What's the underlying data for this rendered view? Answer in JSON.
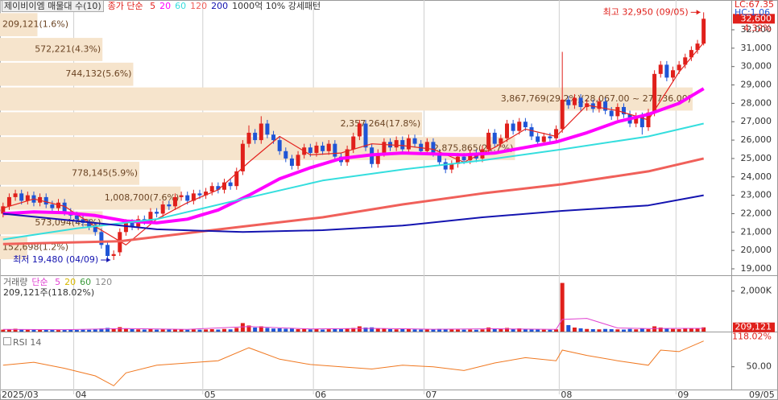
{
  "header": {
    "title": "제이비이엠 매물대 수(10)",
    "ma_prefix": "종가 단순",
    "pattern": "1000억 10% 강세패턴",
    "lc": "LC:67.35",
    "hc": "HC:1.06"
  },
  "chart_data": [
    {
      "type": "candlestick",
      "open": [
        22000,
        22400,
        22900,
        23100,
        22700,
        23000,
        22600,
        22900,
        22500,
        22300,
        22600,
        22100,
        21900,
        21700,
        21500,
        21300,
        21000,
        20300,
        19700,
        19900,
        21000,
        21500,
        21300,
        21700,
        21600,
        22100,
        22000,
        22500,
        22400,
        22900,
        23000,
        22700,
        23100,
        23000,
        23200,
        23500,
        23300,
        23700,
        23500,
        24300,
        25800,
        26400,
        26000,
        26900,
        26300,
        26000,
        25400,
        25000,
        24600,
        25200,
        25600,
        25300,
        25700,
        25400,
        25800,
        25100,
        24800,
        25500,
        26200,
        26900,
        25600,
        24700,
        25300,
        25900,
        25600,
        26000,
        25500,
        26100,
        25800,
        25400,
        25900,
        25300,
        24800,
        24400,
        24700,
        25100,
        24900,
        25300,
        25000,
        25500,
        26400,
        25800,
        26100,
        26900,
        26500,
        27000,
        26700,
        26200,
        25900,
        26200,
        26100,
        26600,
        28200,
        27900,
        28300,
        27800,
        28000,
        27700,
        28100,
        27600,
        27300,
        27800,
        27400,
        26900,
        27300,
        26700,
        27500,
        29600,
        30100,
        29400,
        29800,
        30100,
        30500,
        30900,
        31250
      ],
      "high": [
        22600,
        23100,
        23300,
        23300,
        23200,
        23200,
        23100,
        23100,
        22700,
        22800,
        22800,
        22300,
        22100,
        21900,
        21700,
        21500,
        21200,
        20500,
        20000,
        21200,
        21700,
        21700,
        21900,
        21900,
        22300,
        22300,
        22700,
        22700,
        23100,
        23200,
        23200,
        23300,
        23300,
        23400,
        23700,
        23700,
        23900,
        23900,
        24500,
        26000,
        26800,
        26600,
        27300,
        27100,
        26500,
        26200,
        25600,
        25200,
        25400,
        25800,
        25800,
        25900,
        25900,
        26000,
        26000,
        25300,
        25700,
        26400,
        27100,
        27100,
        25800,
        25500,
        26100,
        26100,
        26200,
        26200,
        26300,
        26300,
        26000,
        26100,
        26100,
        25500,
        25000,
        24900,
        25300,
        25300,
        25500,
        25500,
        25700,
        26600,
        26600,
        26300,
        27100,
        27100,
        27200,
        27200,
        26900,
        26400,
        26400,
        26400,
        26800,
        30800,
        28400,
        28500,
        28500,
        28200,
        28200,
        28300,
        28300,
        27800,
        28000,
        28000,
        27600,
        27500,
        27500,
        27700,
        29800,
        30300,
        30300,
        30000,
        30300,
        30700,
        31100,
        31450,
        32950
      ],
      "low": [
        21800,
        22200,
        22700,
        22500,
        22500,
        22400,
        22400,
        22300,
        22100,
        22100,
        21900,
        21700,
        21500,
        21300,
        21100,
        20800,
        20100,
        19500,
        19480,
        19700,
        20800,
        21100,
        21100,
        21400,
        21400,
        21800,
        21800,
        22200,
        22200,
        22700,
        22500,
        22500,
        22800,
        22800,
        23000,
        23100,
        23100,
        23300,
        23300,
        24100,
        25600,
        25800,
        25800,
        26100,
        25800,
        25200,
        24800,
        24400,
        24400,
        25000,
        25100,
        25100,
        25200,
        25200,
        24900,
        24600,
        24600,
        25300,
        26000,
        25400,
        24500,
        24500,
        25100,
        25400,
        25400,
        25300,
        25300,
        25600,
        25200,
        25200,
        25100,
        24600,
        24200,
        24200,
        24500,
        24700,
        24700,
        24800,
        24800,
        25300,
        25600,
        25600,
        25900,
        26300,
        26300,
        26500,
        26000,
        25700,
        25700,
        25900,
        25900,
        26400,
        27700,
        27700,
        27600,
        27600,
        27500,
        27500,
        27400,
        27100,
        27100,
        27200,
        26700,
        26700,
        26300,
        26500,
        27300,
        29400,
        29200,
        29200,
        29600,
        29900,
        30300,
        30700,
        31150
      ],
      "close": [
        22400,
        22900,
        23100,
        22700,
        23000,
        22600,
        22900,
        22500,
        22300,
        22600,
        22100,
        21900,
        21700,
        21500,
        21300,
        21000,
        20300,
        19700,
        19800,
        21000,
        21500,
        21300,
        21700,
        21600,
        22100,
        22000,
        22500,
        22400,
        22900,
        23000,
        22700,
        23100,
        23000,
        23200,
        23500,
        23300,
        23700,
        23500,
        24300,
        25800,
        26400,
        26000,
        26900,
        26300,
        26000,
        25400,
        25000,
        24600,
        25200,
        25600,
        25300,
        25700,
        25400,
        25800,
        25100,
        24800,
        25500,
        26200,
        26900,
        25600,
        24700,
        25300,
        25900,
        25600,
        26000,
        25500,
        26100,
        25800,
        25400,
        25900,
        25300,
        24800,
        24400,
        24700,
        25100,
        24900,
        25300,
        25000,
        25500,
        26400,
        25800,
        26100,
        26900,
        26500,
        27000,
        26700,
        26200,
        25900,
        26200,
        26100,
        26600,
        28200,
        27900,
        28300,
        27800,
        28000,
        27700,
        28100,
        27600,
        27300,
        27800,
        27400,
        26900,
        27300,
        26700,
        27500,
        29600,
        30100,
        29400,
        29800,
        30100,
        30500,
        30900,
        31250,
        32600
      ],
      "up_color": "#e0201b",
      "down_color": "#1f55d6",
      "xlim": [
        0,
        119
      ],
      "xticks": [
        {
          "value": 0,
          "label": "2025/03"
        },
        {
          "value": 12,
          "label": "04"
        },
        {
          "value": 33,
          "label": "05"
        },
        {
          "value": 51,
          "label": "06"
        },
        {
          "value": 69,
          "label": "07"
        },
        {
          "value": 91,
          "label": "08"
        },
        {
          "value": 110,
          "label": "09"
        }
      ],
      "last_date_label": "09/05",
      "ylim": [
        18650,
        33620
      ],
      "yticks": [
        {
          "value": 19000,
          "label": "19,000"
        },
        {
          "value": 20000,
          "label": "20,000"
        },
        {
          "value": 21000,
          "label": "21,000"
        },
        {
          "value": 22000,
          "label": "22,000"
        },
        {
          "value": 23000,
          "label": "23,000"
        },
        {
          "value": 24000,
          "label": "24,000"
        },
        {
          "value": 25000,
          "label": "25,000"
        },
        {
          "value": 26000,
          "label": "26,000"
        },
        {
          "value": 27000,
          "label": "27,000"
        },
        {
          "value": 28000,
          "label": "28,000"
        },
        {
          "value": 29000,
          "label": "29,000"
        },
        {
          "value": 30000,
          "label": "30,000"
        },
        {
          "value": 31000,
          "label": "31,000"
        },
        {
          "value": 32000,
          "label": "32,000"
        }
      ],
      "series": [
        {
          "name": "5",
          "color": "#e4231f",
          "width": 1.2,
          "x": [
            0,
            5,
            10,
            15,
            20,
            25,
            30,
            35,
            40,
            45,
            50,
            55,
            60,
            65,
            70,
            75,
            80,
            85,
            90,
            95,
            100,
            105,
            110,
            114
          ],
          "values": [
            22300,
            22800,
            22400,
            21300,
            20300,
            21700,
            22600,
            23300,
            24800,
            26200,
            25200,
            25300,
            25800,
            25700,
            25500,
            24800,
            25600,
            26600,
            26200,
            27900,
            27600,
            27100,
            29700,
            31300
          ]
        },
        {
          "name": "20",
          "color": "#ff00ff",
          "width": 4,
          "x": [
            0,
            5,
            10,
            15,
            20,
            25,
            30,
            35,
            40,
            45,
            50,
            55,
            60,
            65,
            70,
            75,
            80,
            85,
            90,
            95,
            100,
            105,
            110,
            114
          ],
          "values": [
            22000,
            22100,
            22050,
            21900,
            21600,
            21500,
            21700,
            22200,
            23000,
            23900,
            24500,
            25000,
            25200,
            25300,
            25250,
            25200,
            25300,
            25600,
            25900,
            26400,
            27000,
            27400,
            28000,
            28800
          ]
        },
        {
          "name": "60",
          "color": "#35dede",
          "width": 2,
          "x": [
            0,
            12,
            25,
            39,
            52,
            65,
            78,
            91,
            105,
            114
          ],
          "values": [
            20600,
            21200,
            21700,
            22800,
            23800,
            24400,
            24900,
            25500,
            26200,
            26900
          ]
        },
        {
          "name": "120",
          "color": "#f0605a",
          "width": 3,
          "x": [
            0,
            19,
            39,
            52,
            65,
            78,
            91,
            105,
            114
          ],
          "values": [
            20350,
            20500,
            21300,
            21800,
            22500,
            23100,
            23600,
            24300,
            25000
          ]
        },
        {
          "name": "200",
          "color": "#1414b0",
          "width": 2,
          "x": [
            0,
            12,
            25,
            39,
            52,
            65,
            78,
            91,
            105,
            114
          ],
          "values": [
            22000,
            21600,
            21150,
            21000,
            21100,
            21350,
            21800,
            22150,
            22450,
            23000
          ]
        }
      ],
      "profile": {
        "color": "#f6e4cc",
        "label_color": "#6b4423",
        "bin_edges": [
          19480,
          20827,
          22174,
          23521,
          24868,
          26215,
          27562,
          28909,
          30256,
          31603,
          32950
        ],
        "values": [
          152698,
          573094,
          1008700,
          778145,
          2875865,
          2357264,
          3867769,
          744132,
          572221,
          209121
        ],
        "value_labels": [
          "152,698(1.2%)",
          "573,094(4.3%)",
          "1,008,700(7.6%)",
          "778,145(5.9%)",
          "2,875,865(21.7%)",
          "2,357,264(17.8%)",
          "3,867,769(29.2%)(28,067.00 ~ 27,736.00)",
          "744,132(5.6%)",
          "572,221(4.3%)",
          "209,121(1.6%)"
        ]
      },
      "annotations": [
        {
          "text": "최고 32,950 (09/05)",
          "x": 114,
          "value": 32950
        },
        {
          "text": "최저 19,480 (04/09)",
          "x": 18,
          "value": 19480
        }
      ],
      "last_label": "32,600",
      "last_value": 32600,
      "change_label": "4.32%"
    },
    {
      "type": "bar",
      "values": [
        95000,
        120000,
        140000,
        110000,
        90000,
        100000,
        85000,
        90000,
        80000,
        75000,
        90000,
        85000,
        80000,
        95000,
        90000,
        110000,
        150000,
        180000,
        160000,
        220000,
        160000,
        120000,
        110000,
        100000,
        130000,
        95000,
        110000,
        100000,
        120000,
        115000,
        90000,
        110000,
        95000,
        105000,
        120000,
        100000,
        130000,
        110000,
        180000,
        420000,
        300000,
        200000,
        260000,
        180000,
        150000,
        160000,
        140000,
        150000,
        120000,
        130000,
        110000,
        120000,
        100000,
        115000,
        130000,
        120000,
        140000,
        180000,
        260000,
        200000,
        210000,
        150000,
        140000,
        120000,
        110000,
        130000,
        120000,
        110000,
        100000,
        105000,
        110000,
        140000,
        130000,
        110000,
        100000,
        95000,
        100000,
        90000,
        110000,
        200000,
        150000,
        120000,
        180000,
        130000,
        160000,
        120000,
        110000,
        100000,
        95000,
        90000,
        110000,
        2400000,
        320000,
        200000,
        160000,
        130000,
        120000,
        110000,
        130000,
        120000,
        110000,
        100000,
        130000,
        110000,
        140000,
        120000,
        260000,
        200000,
        140000,
        130000,
        120000,
        140000,
        150000,
        177200,
        209121
      ],
      "ylim": [
        0,
        2700000
      ],
      "yticks": [
        {
          "value": 2000000,
          "label": "2,000K"
        }
      ],
      "legend_title": "거래량",
      "ma_prefix": "단순",
      "series": [
        {
          "name": "5",
          "color": "#e040d0",
          "x": [
            0,
            10,
            20,
            30,
            40,
            50,
            60,
            70,
            80,
            90,
            91,
            95,
            100,
            105,
            110,
            114
          ],
          "values": [
            110000,
            95000,
            150000,
            110000,
            250000,
            130000,
            160000,
            115000,
            140000,
            110000,
            600000,
            650000,
            180000,
            150000,
            160000,
            160000
          ]
        },
        {
          "name": "20",
          "color": "#d8b800"
        },
        {
          "name": "60",
          "color": "#3a9a3a"
        },
        {
          "name": "120",
          "color": "#8a8a8a"
        }
      ],
      "summary": "209,121주(118.02%)",
      "last_label": "209,121",
      "last_value": 209121,
      "change_label": "118.02%"
    },
    {
      "type": "line",
      "title": "RSI 14",
      "color": "#f07820",
      "x": [
        0,
        5,
        10,
        15,
        18,
        20,
        25,
        30,
        35,
        40,
        45,
        50,
        55,
        60,
        65,
        70,
        75,
        80,
        85,
        90,
        91,
        95,
        100,
        105,
        107,
        110,
        114
      ],
      "values": [
        52,
        56,
        48,
        38,
        25,
        42,
        52,
        55,
        58,
        75,
        60,
        53,
        50,
        47,
        52,
        50,
        45,
        55,
        62,
        58,
        72,
        65,
        58,
        52,
        72,
        70,
        84
      ],
      "ylim": [
        20,
        90
      ],
      "yticks": [
        {
          "value": 50,
          "label": "50.00"
        }
      ]
    }
  ]
}
